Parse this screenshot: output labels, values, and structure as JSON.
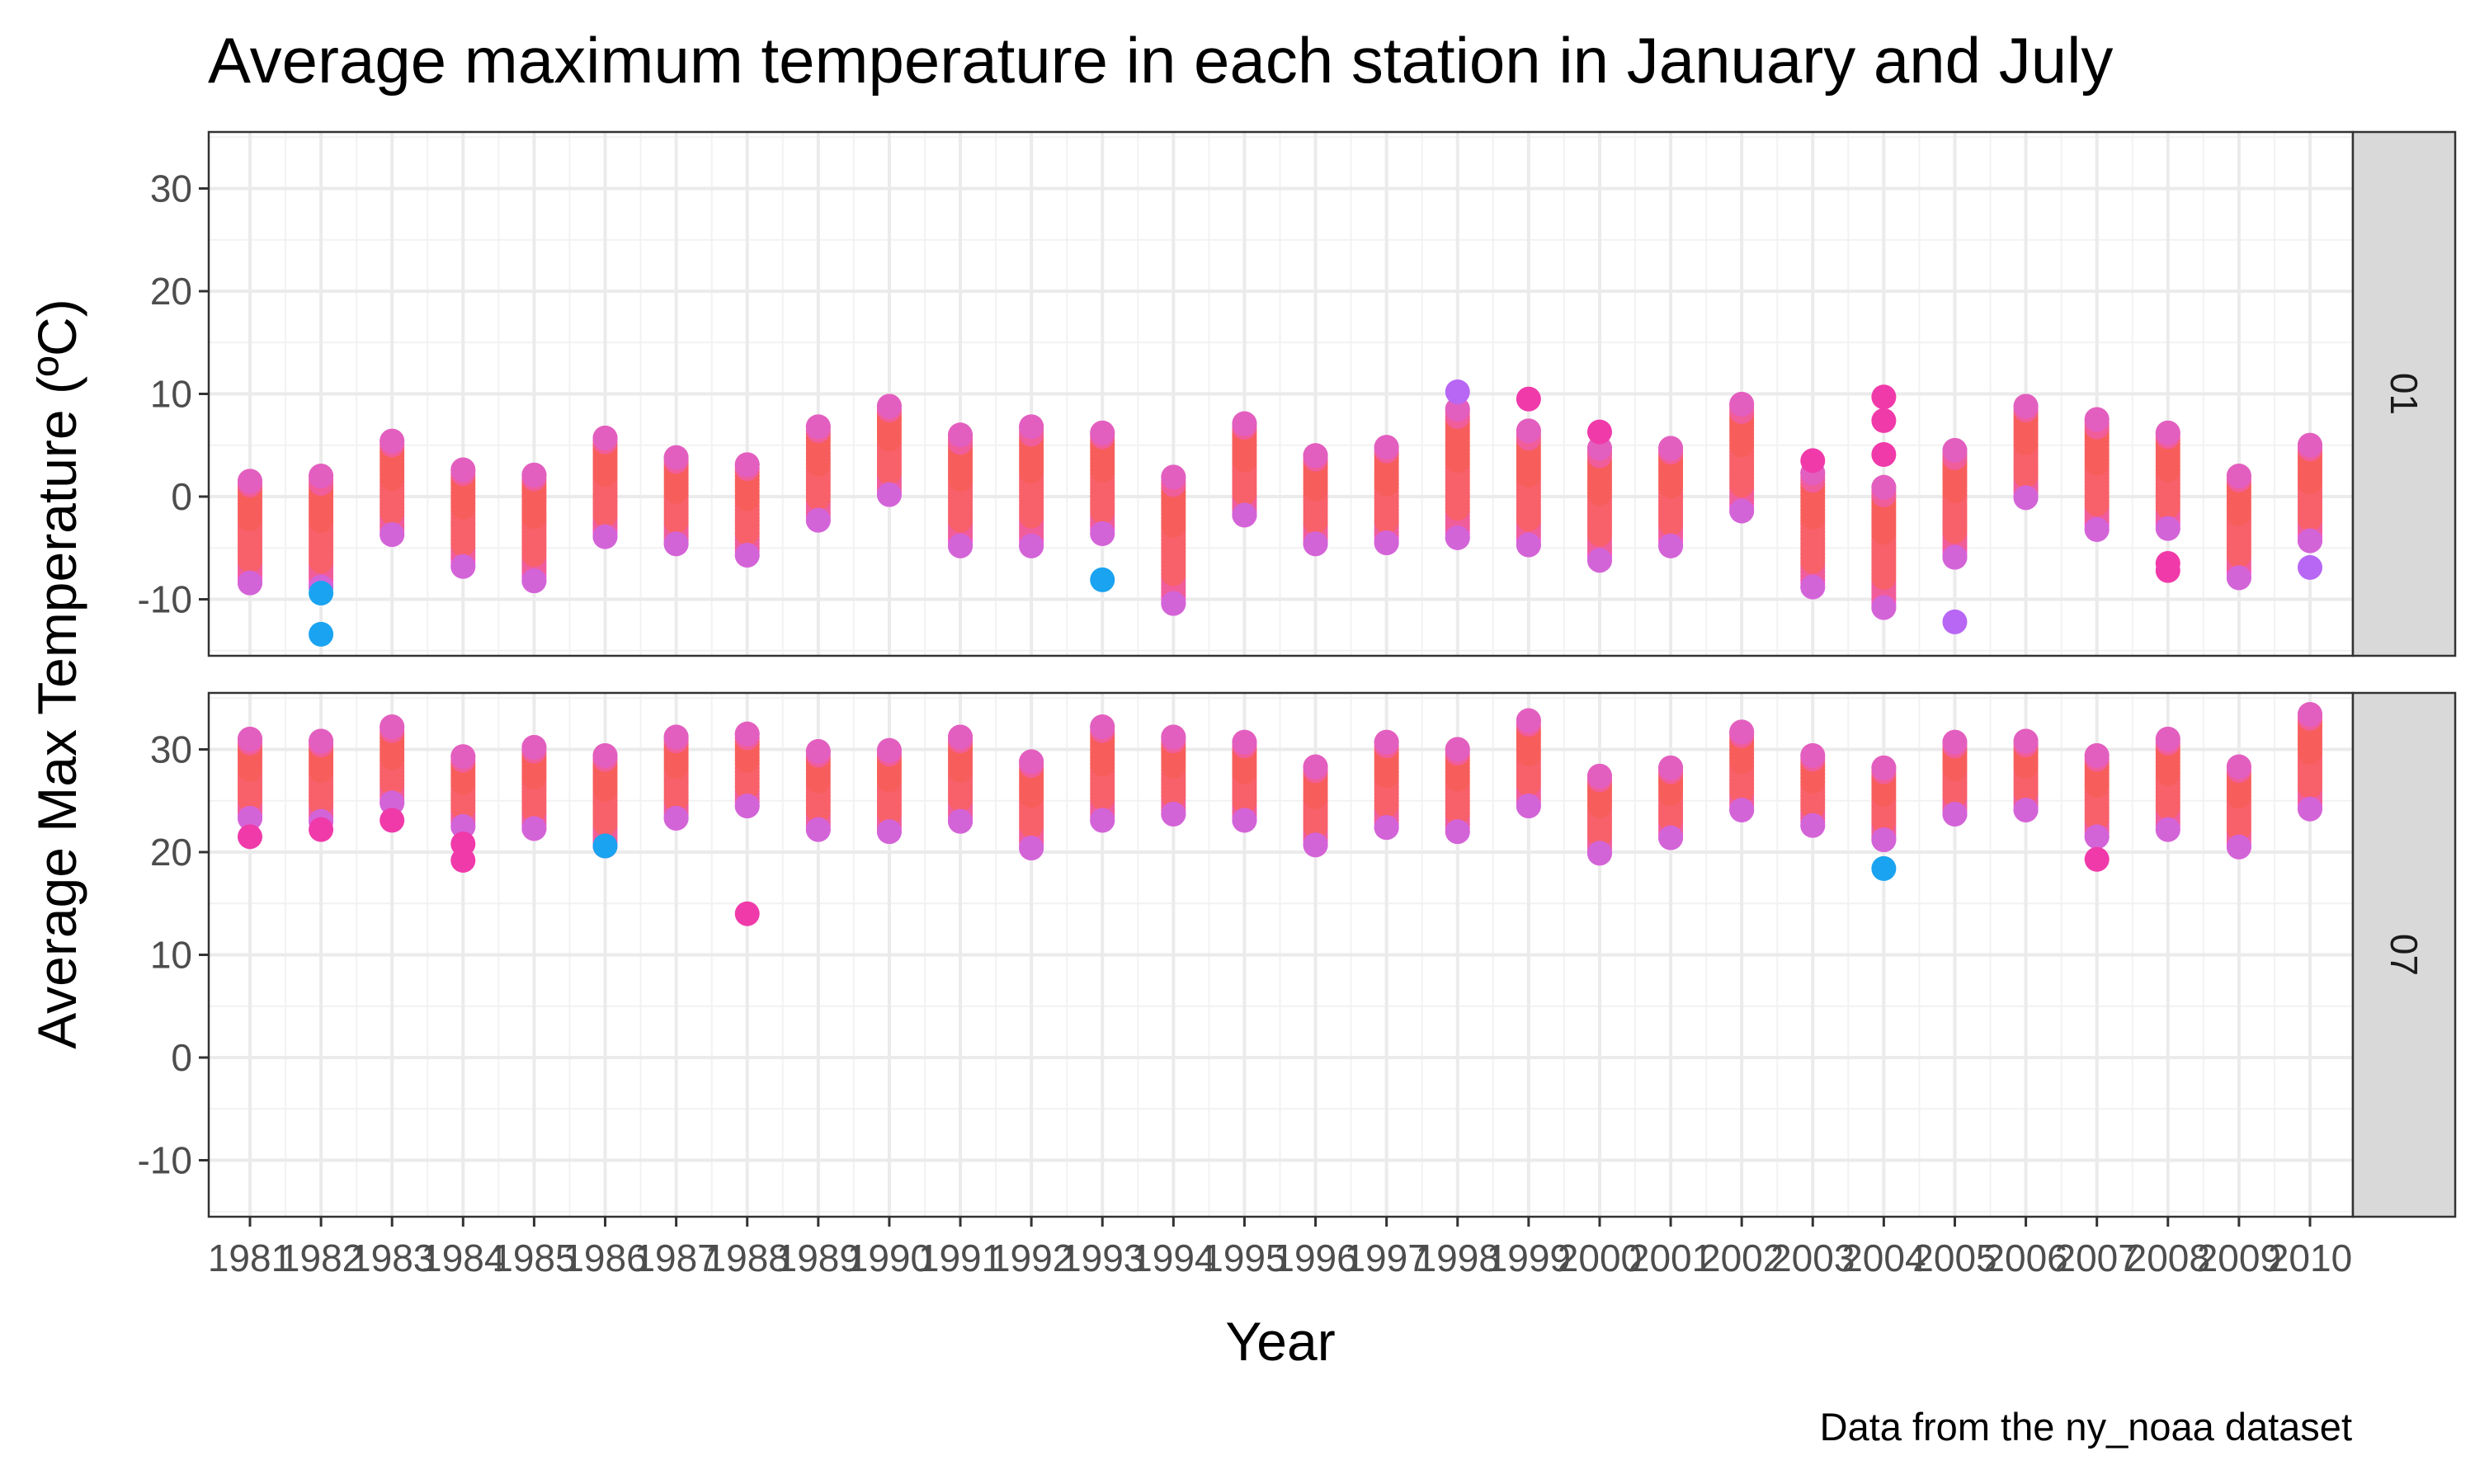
{
  "chart_data": {
    "type": "scatter",
    "title": "Average maximum temperature in each station in January and July",
    "xlabel": "Year",
    "ylabel": "Average Max Temperature (ºC)",
    "caption": "Data from the ny_noaa dataset",
    "x": [
      1981,
      1982,
      1983,
      1984,
      1985,
      1986,
      1987,
      1988,
      1989,
      1990,
      1991,
      1992,
      1993,
      1994,
      1995,
      1996,
      1997,
      1998,
      1999,
      2000,
      2001,
      2002,
      2003,
      2004,
      2005,
      2006,
      2007,
      2008,
      2009,
      2010
    ],
    "ylim": [
      -15.5,
      35.5
    ],
    "yticks": [
      -10,
      0,
      10,
      20,
      30
    ],
    "grid": true,
    "legend": "none",
    "colors": {
      "bands": [
        "#FF4FD2",
        "#F15C9A",
        "#F8606A",
        "#F75E5B"
      ],
      "outlier_blue": "#1AA3F0",
      "outlier_purple": "#B867F4",
      "outlier_magenta": "#F03AAA",
      "strip_fill": "#D9D9D9",
      "grid_major": "#EBEBEB",
      "panel_border": "#333333"
    },
    "panels": [
      {
        "label": "01",
        "ranges": [
          [
            -8.4,
            1.5
          ],
          [
            -8.8,
            2.0
          ],
          [
            -3.7,
            5.4
          ],
          [
            -6.8,
            2.6
          ],
          [
            -8.2,
            2.1
          ],
          [
            -3.9,
            5.7
          ],
          [
            -4.6,
            3.8
          ],
          [
            -5.7,
            3.1
          ],
          [
            -2.3,
            6.8
          ],
          [
            0.2,
            8.8
          ],
          [
            -4.8,
            6.0
          ],
          [
            -4.8,
            6.8
          ],
          [
            -3.6,
            6.2
          ],
          [
            -10.4,
            1.9
          ],
          [
            -1.8,
            7.1
          ],
          [
            -4.6,
            4.0
          ],
          [
            -4.5,
            4.8
          ],
          [
            -4.0,
            8.5
          ],
          [
            -4.7,
            6.4
          ],
          [
            -6.2,
            4.7
          ],
          [
            -4.8,
            4.7
          ],
          [
            -1.4,
            9.0
          ],
          [
            -8.8,
            2.3
          ],
          [
            -10.8,
            0.9
          ],
          [
            -5.9,
            4.5
          ],
          [
            -0.1,
            8.8
          ],
          [
            -3.2,
            7.5
          ],
          [
            -3.1,
            6.2
          ],
          [
            -7.9,
            2.0
          ],
          [
            -4.3,
            5.0
          ]
        ],
        "outliers": [
          {
            "x": 1982,
            "y": -9.4,
            "color": "blue"
          },
          {
            "x": 1982,
            "y": -13.4,
            "color": "blue"
          },
          {
            "x": 1993,
            "y": -8.1,
            "color": "blue"
          },
          {
            "x": 1998,
            "y": 10.2,
            "color": "purple"
          },
          {
            "x": 1999,
            "y": 9.5,
            "color": "magenta"
          },
          {
            "x": 2000,
            "y": 6.3,
            "color": "magenta"
          },
          {
            "x": 2003,
            "y": 3.5,
            "color": "magenta"
          },
          {
            "x": 2004,
            "y": 9.7,
            "color": "magenta"
          },
          {
            "x": 2004,
            "y": 7.4,
            "color": "magenta"
          },
          {
            "x": 2004,
            "y": 4.1,
            "color": "magenta"
          },
          {
            "x": 2005,
            "y": -12.2,
            "color": "purple"
          },
          {
            "x": 2008,
            "y": -6.5,
            "color": "magenta"
          },
          {
            "x": 2008,
            "y": -7.2,
            "color": "magenta"
          },
          {
            "x": 2010,
            "y": -6.9,
            "color": "purple"
          }
        ]
      },
      {
        "label": "07",
        "ranges": [
          [
            23.3,
            31.0
          ],
          [
            23.0,
            30.8
          ],
          [
            24.8,
            32.2
          ],
          [
            22.5,
            29.3
          ],
          [
            22.3,
            30.2
          ],
          [
            20.6,
            29.4
          ],
          [
            23.3,
            31.2
          ],
          [
            24.5,
            31.5
          ],
          [
            22.2,
            29.8
          ],
          [
            22.0,
            29.9
          ],
          [
            23.0,
            31.2
          ],
          [
            20.4,
            28.8
          ],
          [
            23.1,
            32.2
          ],
          [
            23.7,
            31.2
          ],
          [
            23.1,
            30.7
          ],
          [
            20.7,
            28.3
          ],
          [
            22.4,
            30.7
          ],
          [
            22.0,
            30.0
          ],
          [
            24.5,
            32.8
          ],
          [
            19.9,
            27.4
          ],
          [
            21.4,
            28.2
          ],
          [
            24.1,
            31.7
          ],
          [
            22.6,
            29.4
          ],
          [
            21.2,
            28.2
          ],
          [
            23.7,
            30.7
          ],
          [
            24.1,
            30.8
          ],
          [
            21.5,
            29.4
          ],
          [
            22.2,
            31.0
          ],
          [
            20.5,
            28.3
          ],
          [
            24.2,
            33.4
          ]
        ],
        "outliers": [
          {
            "x": 1981,
            "y": 21.5,
            "color": "magenta"
          },
          {
            "x": 1982,
            "y": 22.2,
            "color": "magenta"
          },
          {
            "x": 1983,
            "y": 23.1,
            "color": "magenta"
          },
          {
            "x": 1984,
            "y": 20.8,
            "color": "magenta"
          },
          {
            "x": 1984,
            "y": 19.2,
            "color": "magenta"
          },
          {
            "x": 1986,
            "y": 20.6,
            "color": "blue"
          },
          {
            "x": 1988,
            "y": 14.0,
            "color": "magenta"
          },
          {
            "x": 2004,
            "y": 18.4,
            "color": "blue"
          },
          {
            "x": 2007,
            "y": 19.3,
            "color": "magenta"
          }
        ]
      }
    ]
  }
}
